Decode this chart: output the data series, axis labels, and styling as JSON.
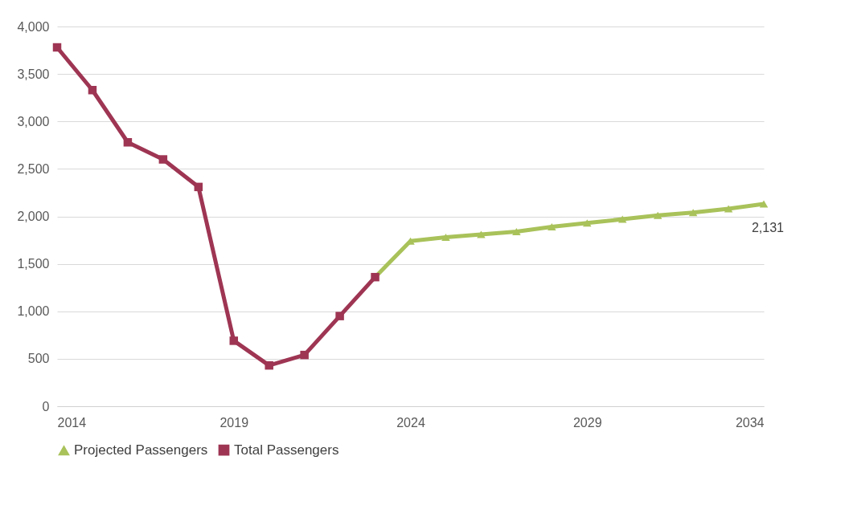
{
  "chart_data": {
    "type": "line",
    "x": [
      2014,
      2015,
      2016,
      2017,
      2018,
      2019,
      2020,
      2021,
      2022,
      2023,
      2024,
      2025,
      2026,
      2027,
      2028,
      2029,
      2030,
      2031,
      2032,
      2033,
      2034
    ],
    "series": [
      {
        "name": "Projected Passengers",
        "color": "#a9c25a",
        "marker": "triangle",
        "values": [
          null,
          null,
          null,
          null,
          null,
          null,
          null,
          null,
          null,
          1360,
          1740,
          1780,
          1810,
          1840,
          1890,
          1930,
          1970,
          2010,
          2040,
          2080,
          2131
        ]
      },
      {
        "name": "Total Passengers",
        "color": "#9e3553",
        "marker": "square",
        "values": [
          3780,
          3330,
          2780,
          2600,
          2310,
          690,
          430,
          540,
          950,
          1360,
          null,
          null,
          null,
          null,
          null,
          null,
          null,
          null,
          null,
          null,
          null
        ]
      }
    ],
    "xlim": [
      2014,
      2034
    ],
    "xticks": [
      2014,
      2019,
      2024,
      2029,
      2034
    ],
    "ylim": [
      0,
      4000
    ],
    "yticks": [
      0,
      500,
      {
        "value": 1000,
        "label": "1,000"
      },
      {
        "value": 1500,
        "label": "1,500"
      },
      {
        "value": 2000,
        "label": "2,000"
      },
      {
        "value": 2500,
        "label": "2,500"
      },
      {
        "value": 3000,
        "label": "3,000"
      },
      {
        "value": 3500,
        "label": "3,500"
      },
      {
        "value": 4000,
        "label": "4,000"
      }
    ],
    "annotations": [
      {
        "text": "2,131",
        "x": 2034,
        "y": 2131
      }
    ],
    "grid": "y",
    "legend": "bottom",
    "line_style": "solid"
  }
}
